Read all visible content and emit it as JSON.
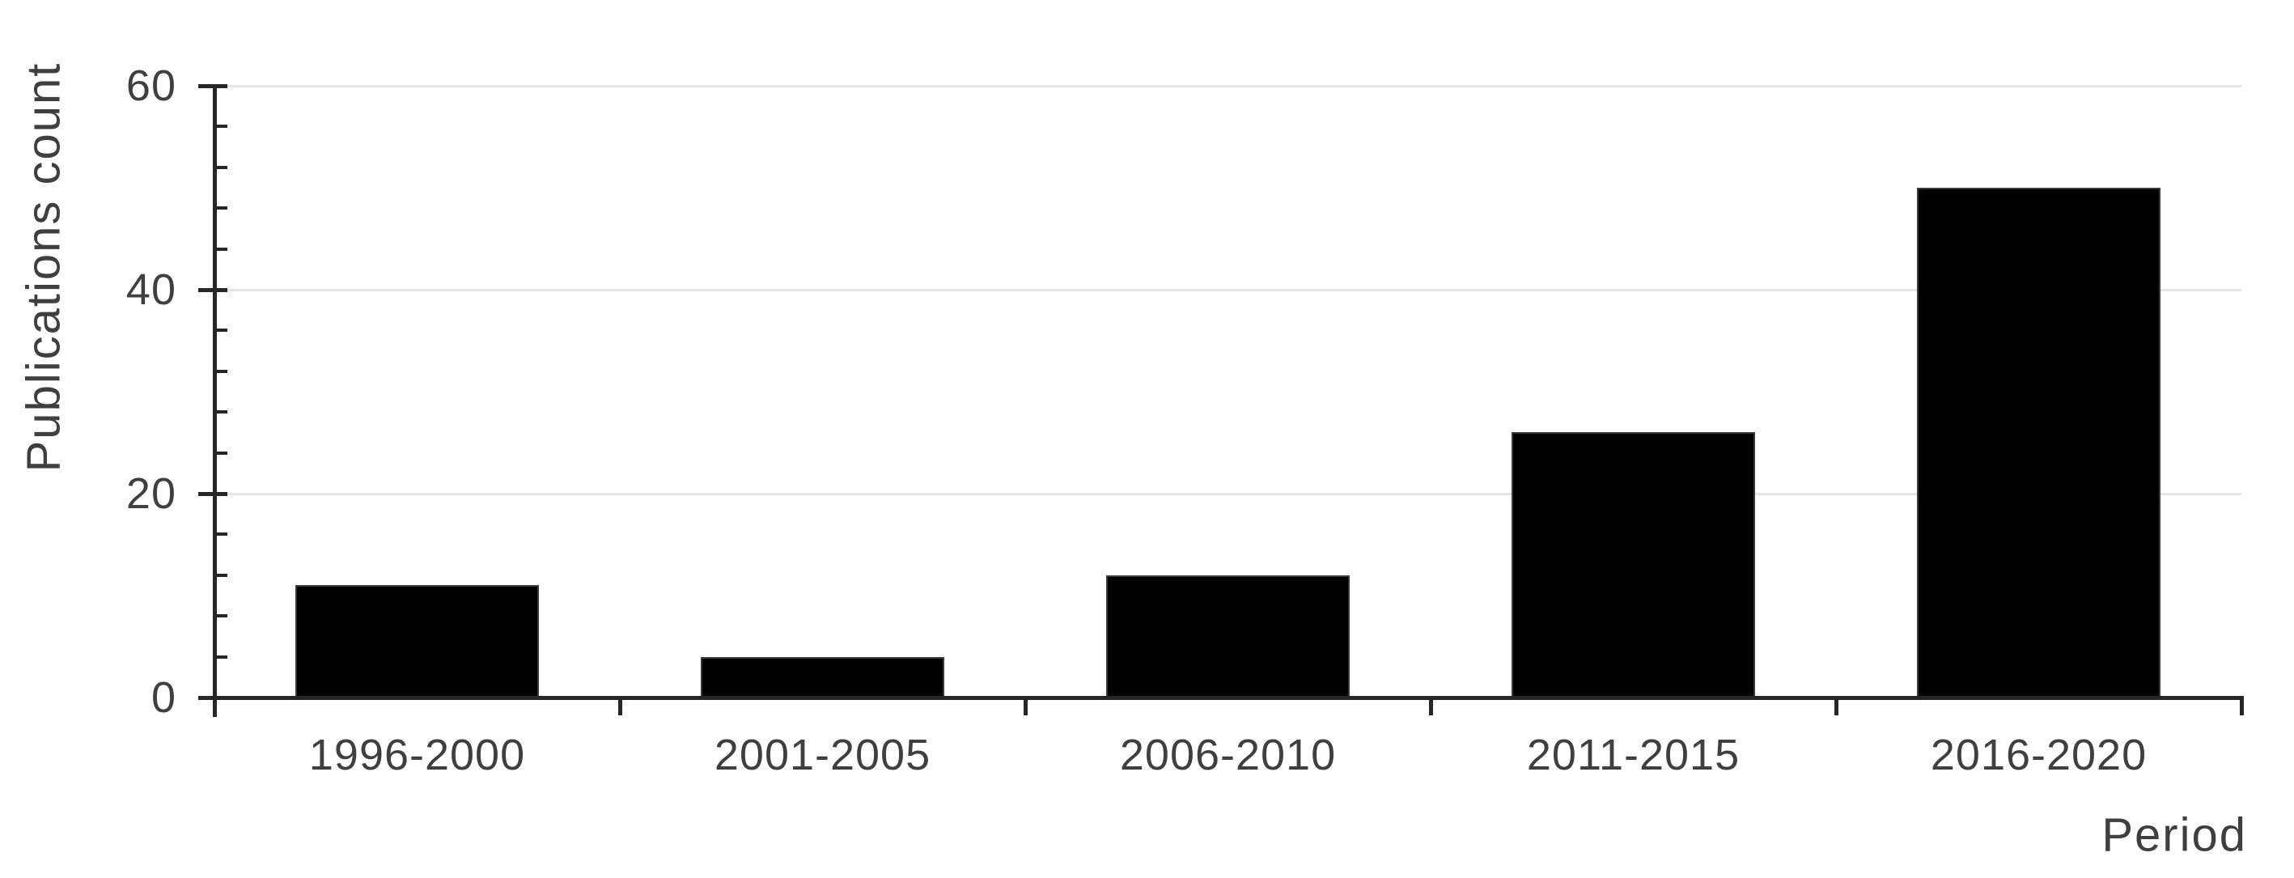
{
  "chart_data": {
    "type": "bar",
    "categories": [
      "1996-2000",
      "2001-2005",
      "2006-2010",
      "2011-2015",
      "2016-2020"
    ],
    "values": [
      11,
      4,
      12,
      26,
      50
    ],
    "title": "",
    "xlabel": "Period",
    "ylabel": "Publications count",
    "ylim": [
      0,
      60
    ],
    "yticks": [
      0,
      20,
      40,
      60
    ],
    "y_minor_tick_step": 4,
    "grid": "horizontal-major-only",
    "legend": "none",
    "bar_color": "#000000",
    "bar_outline_color": "#3a3a3a",
    "axis_color": "#262626",
    "gridline_color": "#e4e4e4",
    "text_color": "#3f3f3f",
    "background_color": "#ffffff"
  }
}
